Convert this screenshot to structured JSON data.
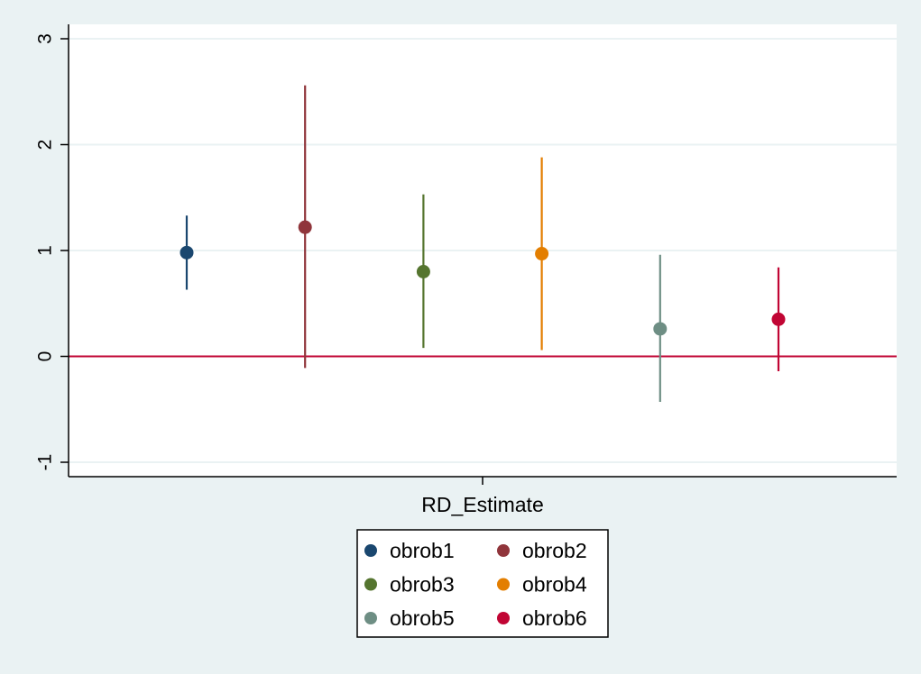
{
  "chart_data": {
    "type": "scatter",
    "title": "",
    "xlabel": "",
    "ylabel": "",
    "category": "RD_Estimate",
    "ylim": [
      -1.1,
      3.0
    ],
    "yticks": [
      -1,
      0,
      1,
      2,
      3
    ],
    "ytick_labels": [
      "-1",
      "0",
      "1",
      "2",
      "3"
    ],
    "grid": true,
    "reference_line": {
      "y": 0,
      "color": "#c10534"
    },
    "legend_position": "bottom",
    "series": [
      {
        "name": "obrob1",
        "estimate": 0.98,
        "ci_low": 0.63,
        "ci_high": 1.33,
        "color": "#1a476f"
      },
      {
        "name": "obrob2",
        "estimate": 1.22,
        "ci_low": -0.11,
        "ci_high": 2.56,
        "color": "#90353b"
      },
      {
        "name": "obrob3",
        "estimate": 0.8,
        "ci_low": 0.08,
        "ci_high": 1.53,
        "color": "#55752f"
      },
      {
        "name": "obrob4",
        "estimate": 0.97,
        "ci_low": 0.06,
        "ci_high": 1.88,
        "color": "#e37e00"
      },
      {
        "name": "obrob5",
        "estimate": 0.26,
        "ci_low": -0.43,
        "ci_high": 0.96,
        "color": "#6e8e84"
      },
      {
        "name": "obrob6",
        "estimate": 0.35,
        "ci_low": -0.14,
        "ci_high": 0.84,
        "color": "#c10534"
      }
    ]
  }
}
